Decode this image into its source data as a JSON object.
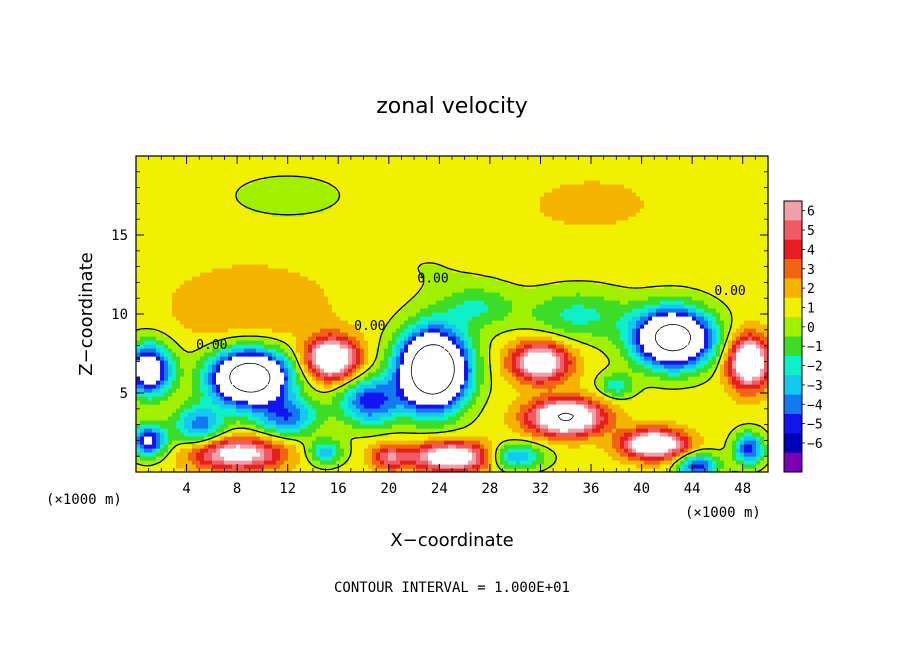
{
  "chart_data": {
    "type": "heatmap",
    "title": "zonal velocity",
    "xlabel": "X−coordinate",
    "ylabel": "Z−coordinate",
    "x_unit_left": "(×1000 m)",
    "x_unit_right": "(×1000 m)",
    "footer": "CONTOUR INTERVAL = 1.000E+01",
    "xlim": [
      0,
      50
    ],
    "ylim": [
      0,
      20
    ],
    "x_ticks": [
      4,
      8,
      12,
      16,
      20,
      24,
      28,
      32,
      36,
      40,
      44,
      48
    ],
    "x_tick_labels": [
      "4",
      "8",
      "12",
      "16",
      "20",
      "24",
      "28",
      "32",
      "36",
      "40",
      "44",
      "48"
    ],
    "y_ticks": [
      5,
      10,
      15
    ],
    "y_tick_labels": [
      "5",
      "10",
      "15"
    ],
    "contour_labels": [
      {
        "text": "0.00",
        "x": 23.5,
        "y": 12.0
      },
      {
        "text": "0.00",
        "x": 18.5,
        "y": 9.0
      },
      {
        "text": "0.00",
        "x": 6.0,
        "y": 7.8
      },
      {
        "text": "0.00",
        "x": 47.0,
        "y": 11.2
      }
    ],
    "colorbar": {
      "levels": [
        6,
        5,
        4,
        3,
        2,
        1,
        0,
        -1,
        -2,
        -3,
        -4,
        -5,
        -6
      ],
      "level_labels": [
        "6",
        "5",
        "4",
        "3",
        "2",
        "1",
        "0",
        "−1",
        "−2",
        "−3",
        "−4",
        "−5",
        "−6"
      ],
      "colors": [
        "#f0a0a8",
        "#f05a64",
        "#e61e1e",
        "#f06414",
        "#f5b400",
        "#f0f000",
        "#a0f000",
        "#3cdc28",
        "#10f0c8",
        "#14c8f0",
        "#1478f0",
        "#1414f0",
        "#0000b4",
        "#7a00b4"
      ]
    },
    "field": {
      "background": 0.5,
      "blobs": [
        {
          "x": 9,
          "y": 10.5,
          "sx": 6,
          "sy": 2.5,
          "v": 1.5
        },
        {
          "x": 12,
          "y": 17.5,
          "sx": 6,
          "sy": 1.8,
          "v": -0.8
        },
        {
          "x": 23,
          "y": 13,
          "sx": 4,
          "sy": 1.5,
          "v": -0.5
        },
        {
          "x": 36,
          "y": 17,
          "sx": 6,
          "sy": 2,
          "v": 0.8
        },
        {
          "x": 35,
          "y": 10,
          "sx": 4,
          "sy": 1.6,
          "v": -2.8
        },
        {
          "x": 27,
          "y": 10.5,
          "sx": 3,
          "sy": 1.4,
          "v": -2.5
        },
        {
          "x": 9,
          "y": 6.0,
          "sx": 3.0,
          "sy": 1.7,
          "v": -14
        },
        {
          "x": 23.5,
          "y": 6.5,
          "sx": 2.6,
          "sy": 2.4,
          "v": -16
        },
        {
          "x": 42.5,
          "y": 8.5,
          "sx": 3.0,
          "sy": 1.8,
          "v": -13
        },
        {
          "x": 1,
          "y": 6.5,
          "sx": 1.8,
          "sy": 1.6,
          "v": -9
        },
        {
          "x": 18.5,
          "y": 4.5,
          "sx": 2.4,
          "sy": 1.5,
          "v": -6
        },
        {
          "x": 12,
          "y": 3.5,
          "sx": 2.5,
          "sy": 1.2,
          "v": -5
        },
        {
          "x": 5,
          "y": 3.0,
          "sx": 2,
          "sy": 1.3,
          "v": -5
        },
        {
          "x": 15.5,
          "y": 7.2,
          "sx": 2.0,
          "sy": 1.3,
          "v": 9
        },
        {
          "x": 32,
          "y": 7.0,
          "sx": 2.2,
          "sy": 1.2,
          "v": 8
        },
        {
          "x": 48.5,
          "y": 7.0,
          "sx": 1.6,
          "sy": 1.6,
          "v": 9
        },
        {
          "x": 34,
          "y": 3.5,
          "sx": 2.8,
          "sy": 1.1,
          "v": 10
        },
        {
          "x": 8,
          "y": 1.2,
          "sx": 3.5,
          "sy": 1.0,
          "v": 7
        },
        {
          "x": 25,
          "y": 1.0,
          "sx": 3.2,
          "sy": 0.9,
          "v": 8
        },
        {
          "x": 41,
          "y": 1.8,
          "sx": 2.4,
          "sy": 0.9,
          "v": 9
        },
        {
          "x": 44.5,
          "y": 0.4,
          "sx": 1.6,
          "sy": 0.8,
          "v": -6
        },
        {
          "x": 48.5,
          "y": 1.5,
          "sx": 1.2,
          "sy": 1.0,
          "v": -6
        },
        {
          "x": 30,
          "y": 1.0,
          "sx": 2.2,
          "sy": 0.8,
          "v": -5
        },
        {
          "x": 15,
          "y": 1.3,
          "sx": 1.4,
          "sy": 0.8,
          "v": -4
        },
        {
          "x": 1,
          "y": 2.0,
          "sx": 1.4,
          "sy": 1.0,
          "v": -7
        },
        {
          "x": 20,
          "y": 1.0,
          "sx": 1.4,
          "sy": 0.8,
          "v": 4
        },
        {
          "x": 38,
          "y": 5.5,
          "sx": 1.4,
          "sy": 0.8,
          "v": -3
        }
      ]
    }
  }
}
